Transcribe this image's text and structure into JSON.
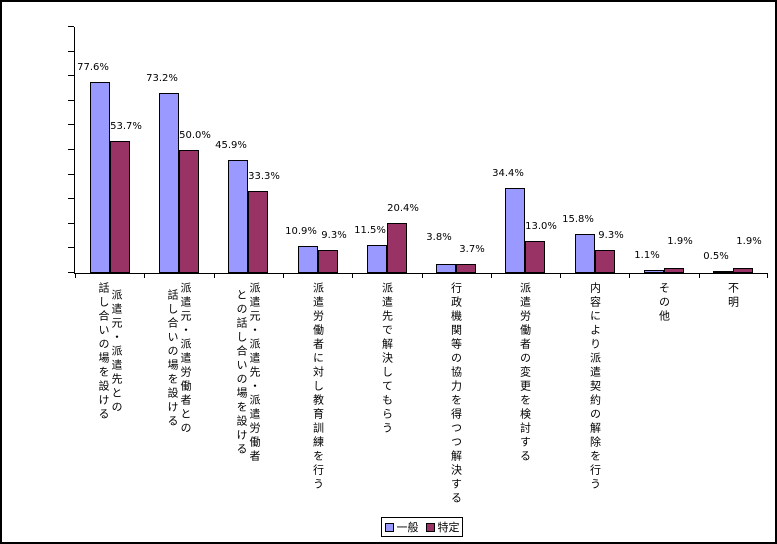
{
  "chart_data": {
    "type": "bar",
    "title": "",
    "categories": [
      "派遣元・派遣先との話し合いの場を設ける",
      "派遣元・派遣労働者との話し合いの場を設ける",
      "派遣元・派遣先・派遣労働者との話し合いの場を設ける",
      "派遣労働者に対し教育訓練を行う",
      "派遣先で解決してもらう",
      "行政機関等の協力を得つつ解決する",
      "派遣労働者の変更を検討する",
      "内容により派遣契約の解除を行う",
      "その他",
      "不明"
    ],
    "category_label_lines": [
      [
        "派遣元・派遣先との",
        "話し合いの場を設ける"
      ],
      [
        "派遣元・派遣労働者との",
        "話し合いの場を設ける"
      ],
      [
        "派遣元・派遣先・派遣労働者",
        "との話し合いの場を設ける"
      ],
      [
        "派遣労働者に対し教育訓練を行う"
      ],
      [
        "派遣先で解決してもらう"
      ],
      [
        "行政機関等の協力を得つつ解決する"
      ],
      [
        "派遣労働者の変更を検討する"
      ],
      [
        "内容により派遣契約の解除を行う"
      ],
      [
        "その他"
      ],
      [
        "不明"
      ]
    ],
    "series": [
      {
        "name": "一般",
        "color": "#9999FF",
        "values": [
          77.6,
          73.2,
          45.9,
          10.9,
          11.5,
          3.8,
          34.4,
          15.8,
          1.1,
          0.5
        ]
      },
      {
        "name": "特定",
        "color": "#993366",
        "values": [
          53.7,
          50.0,
          33.3,
          9.3,
          20.4,
          3.7,
          13.0,
          9.3,
          1.9,
          1.9
        ]
      }
    ],
    "value_label_suffix": "%",
    "ylim": [
      0,
      100
    ],
    "y_tick_step": 10,
    "y_tick_labels_visible": false,
    "grid": false,
    "legend_position": "bottom",
    "bar_border_color": "#000000",
    "background_color": "#FFFFFF"
  }
}
